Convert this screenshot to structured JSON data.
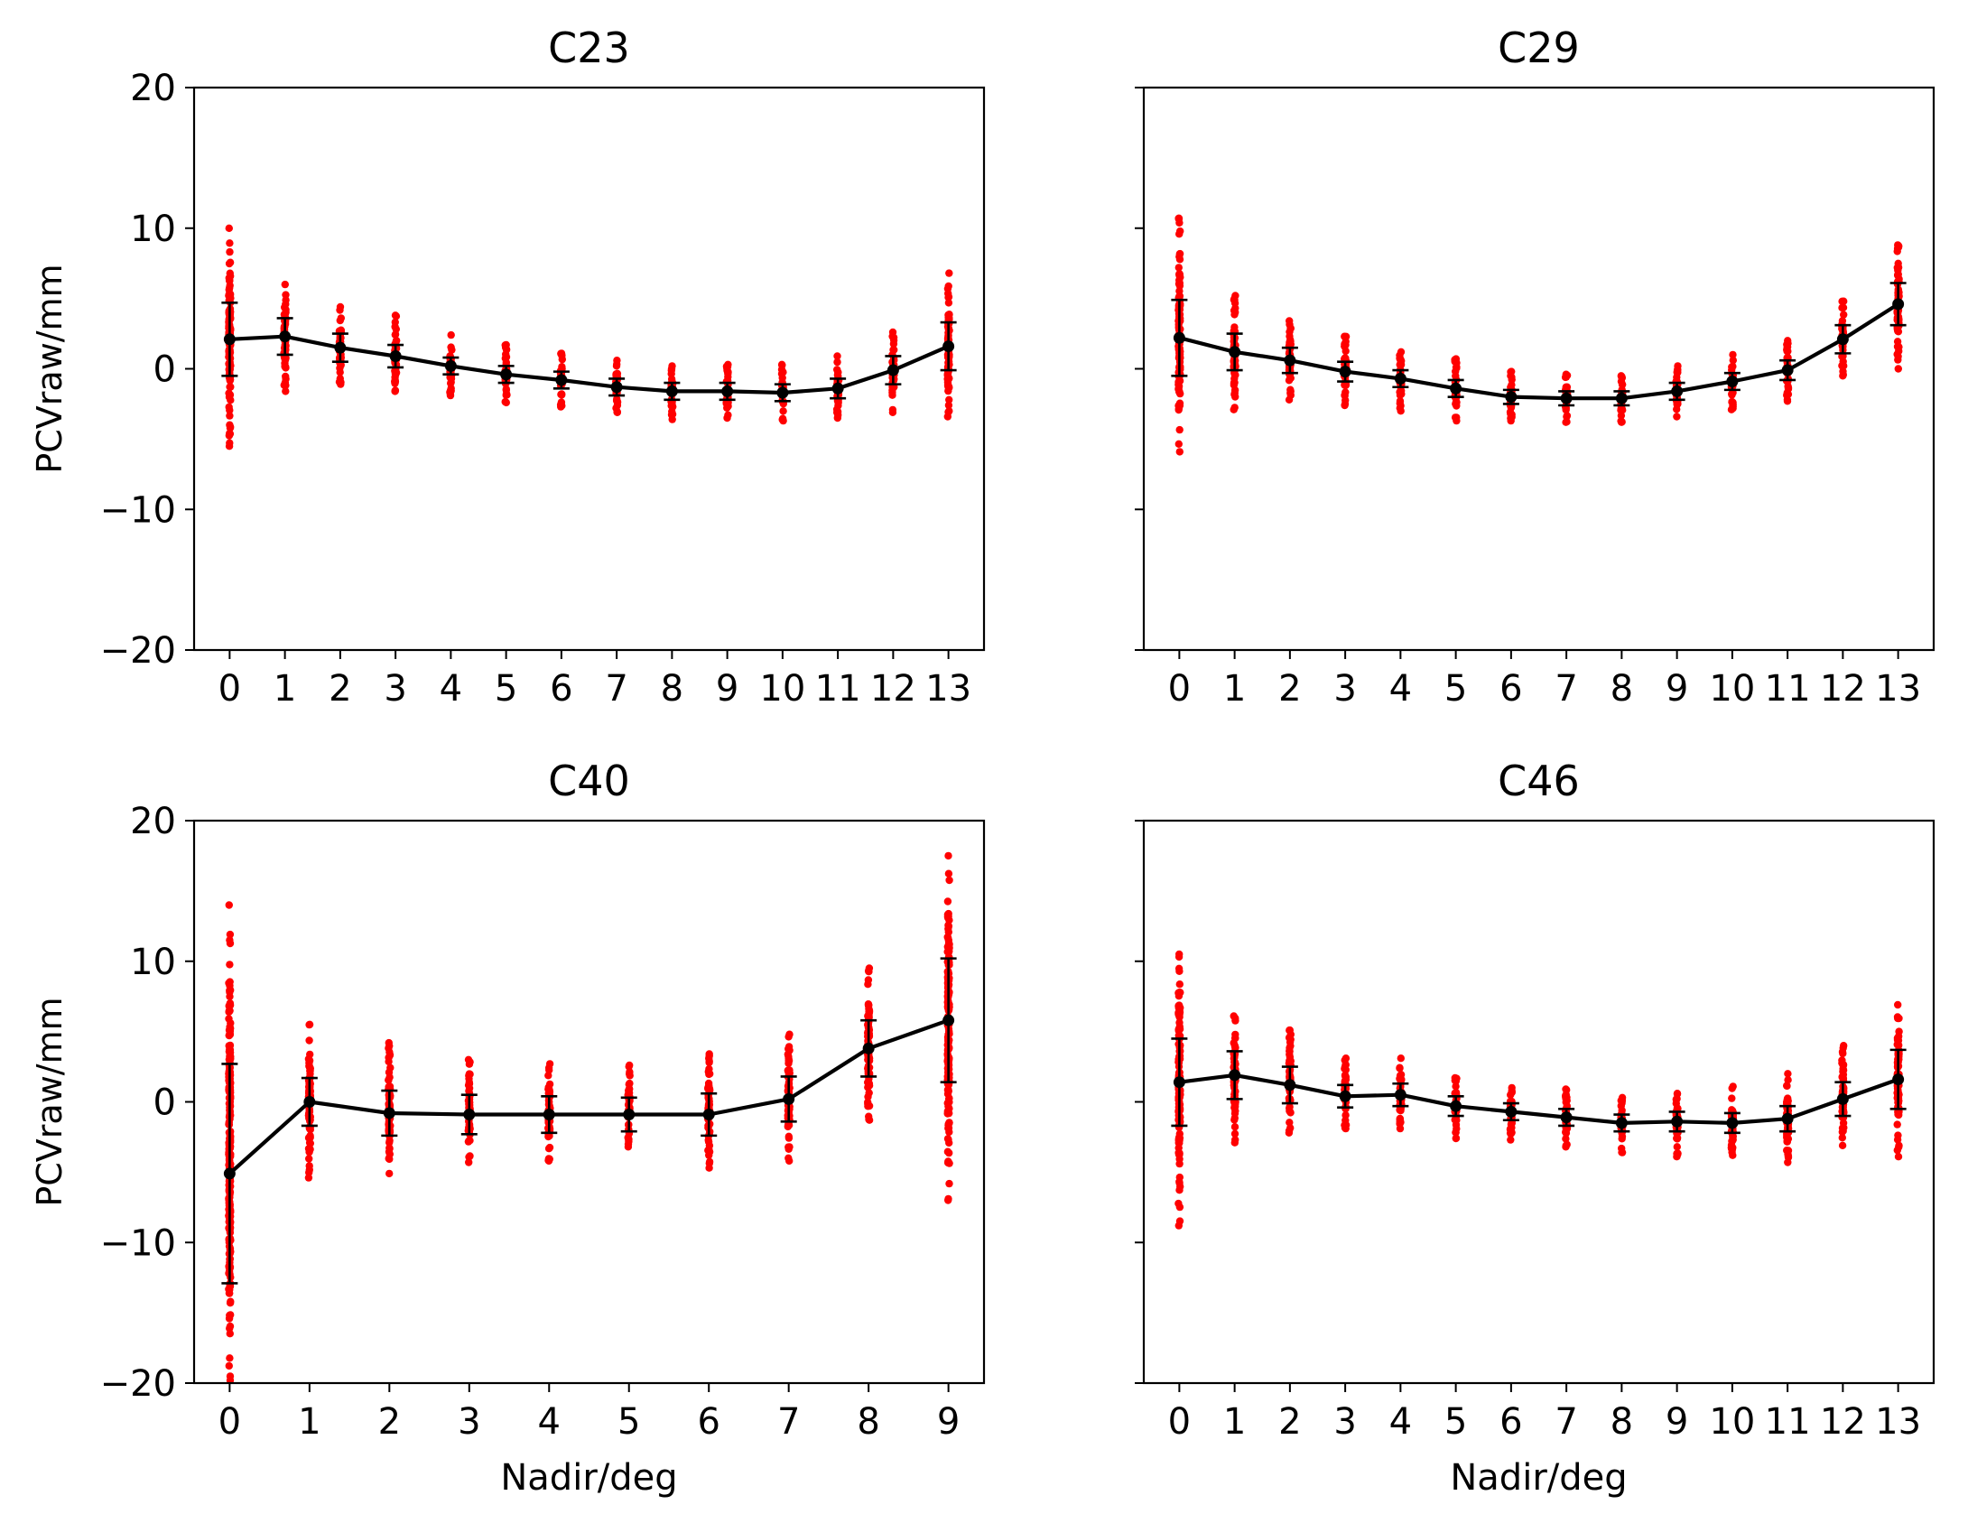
{
  "colors": {
    "mean_line": "#000000",
    "scatter": "#ff0000",
    "axes": "#000000"
  },
  "shared": {
    "ylabel": "PCVraw/mm",
    "xlabel": "Nadir/deg",
    "ylim": [
      -20,
      20
    ],
    "yticks": [
      20,
      10,
      0,
      -10,
      -20
    ],
    "ytick_labels": [
      "20",
      "10",
      "0",
      "−10",
      "−20"
    ]
  },
  "chart_data": [
    {
      "type": "scatter",
      "title": "C23",
      "xlabel": "",
      "ylabel": "PCVraw/mm",
      "ylim": [
        -20,
        20
      ],
      "x": [
        0,
        1,
        2,
        3,
        4,
        5,
        6,
        7,
        8,
        9,
        10,
        11,
        12,
        13
      ],
      "xtick_labels": [
        "0",
        "1",
        "2",
        "3",
        "4",
        "5",
        "6",
        "7",
        "8",
        "9",
        "10",
        "11",
        "12",
        "13"
      ],
      "mean": [
        2.1,
        2.3,
        1.5,
        0.9,
        0.2,
        -0.4,
        -0.8,
        -1.3,
        -1.6,
        -1.6,
        -1.7,
        -1.4,
        -0.1,
        1.6
      ],
      "std": [
        2.6,
        1.3,
        1.0,
        0.8,
        0.6,
        0.6,
        0.6,
        0.6,
        0.6,
        0.6,
        0.6,
        0.7,
        1.0,
        1.7
      ],
      "scatter_range": [
        [
          -5.5,
          10.0
        ],
        [
          -1.6,
          6.0
        ],
        [
          -1.1,
          4.4
        ],
        [
          -1.6,
          3.8
        ],
        [
          -1.9,
          2.4
        ],
        [
          -2.4,
          1.7
        ],
        [
          -2.7,
          1.1
        ],
        [
          -3.1,
          0.6
        ],
        [
          -3.6,
          0.2
        ],
        [
          -3.5,
          0.3
        ],
        [
          -3.7,
          0.3
        ],
        [
          -3.5,
          0.9
        ],
        [
          -3.1,
          2.6
        ],
        [
          -3.4,
          6.8
        ]
      ]
    },
    {
      "type": "scatter",
      "title": "C29",
      "xlabel": "",
      "ylabel": "",
      "ylim": [
        -20,
        20
      ],
      "x": [
        0,
        1,
        2,
        3,
        4,
        5,
        6,
        7,
        8,
        9,
        10,
        11,
        12,
        13
      ],
      "xtick_labels": [
        "0",
        "1",
        "2",
        "3",
        "4",
        "5",
        "6",
        "7",
        "8",
        "9",
        "10",
        "11",
        "12",
        "13"
      ],
      "mean": [
        2.2,
        1.2,
        0.6,
        -0.2,
        -0.7,
        -1.4,
        -2.0,
        -2.1,
        -2.1,
        -1.6,
        -0.9,
        -0.1,
        2.1,
        4.6
      ],
      "std": [
        2.7,
        1.3,
        0.9,
        0.7,
        0.6,
        0.6,
        0.5,
        0.5,
        0.5,
        0.6,
        0.6,
        0.7,
        1.0,
        1.5
      ],
      "scatter_range": [
        [
          -5.9,
          10.7
        ],
        [
          -2.9,
          5.2
        ],
        [
          -2.2,
          3.4
        ],
        [
          -2.6,
          2.3
        ],
        [
          -3.0,
          1.2
        ],
        [
          -3.7,
          0.7
        ],
        [
          -3.7,
          -0.2
        ],
        [
          -3.8,
          -0.4
        ],
        [
          -3.8,
          -0.5
        ],
        [
          -3.4,
          0.2
        ],
        [
          -2.9,
          1.0
        ],
        [
          -2.3,
          2.0
        ],
        [
          -0.5,
          4.8
        ],
        [
          0.0,
          8.8
        ]
      ]
    },
    {
      "type": "scatter",
      "title": "C40",
      "xlabel": "Nadir/deg",
      "ylabel": "PCVraw/mm",
      "ylim": [
        -20,
        20
      ],
      "x": [
        0,
        1,
        2,
        3,
        4,
        5,
        6,
        7,
        8,
        9
      ],
      "xtick_labels": [
        "0",
        "1",
        "2",
        "3",
        "4",
        "5",
        "6",
        "7",
        "8",
        "9"
      ],
      "mean": [
        -5.1,
        0.0,
        -0.8,
        -0.9,
        -0.9,
        -0.9,
        -0.9,
        0.2,
        3.8,
        5.8
      ],
      "std": [
        7.8,
        1.7,
        1.6,
        1.4,
        1.3,
        1.2,
        1.5,
        1.6,
        2.0,
        4.4
      ],
      "scatter_range": [
        [
          -19.8,
          14.0
        ],
        [
          -5.4,
          5.5
        ],
        [
          -5.1,
          4.2
        ],
        [
          -4.3,
          3.0
        ],
        [
          -4.2,
          2.7
        ],
        [
          -3.2,
          2.6
        ],
        [
          -4.7,
          3.4
        ],
        [
          -4.2,
          4.8
        ],
        [
          -1.3,
          9.5
        ],
        [
          -7.0,
          17.5
        ]
      ]
    },
    {
      "type": "scatter",
      "title": "C46",
      "xlabel": "Nadir/deg",
      "ylabel": "",
      "ylim": [
        -20,
        20
      ],
      "x": [
        0,
        1,
        2,
        3,
        4,
        5,
        6,
        7,
        8,
        9,
        10,
        11,
        12,
        13
      ],
      "xtick_labels": [
        "0",
        "1",
        "2",
        "3",
        "4",
        "5",
        "6",
        "7",
        "8",
        "9",
        "10",
        "11",
        "12",
        "13"
      ],
      "mean": [
        1.4,
        1.9,
        1.2,
        0.4,
        0.5,
        -0.3,
        -0.7,
        -1.1,
        -1.5,
        -1.4,
        -1.5,
        -1.2,
        0.2,
        1.6
      ],
      "std": [
        3.1,
        1.7,
        1.3,
        0.8,
        0.8,
        0.7,
        0.6,
        0.6,
        0.6,
        0.7,
        0.7,
        0.9,
        1.2,
        2.1
      ],
      "scatter_range": [
        [
          -8.8,
          10.5
        ],
        [
          -2.9,
          6.1
        ],
        [
          -2.2,
          5.1
        ],
        [
          -1.9,
          3.1
        ],
        [
          -1.9,
          3.1
        ],
        [
          -2.6,
          1.7
        ],
        [
          -2.7,
          1.0
        ],
        [
          -3.2,
          0.9
        ],
        [
          -3.6,
          0.3
        ],
        [
          -3.9,
          0.6
        ],
        [
          -3.8,
          1.1
        ],
        [
          -4.3,
          2.0
        ],
        [
          -3.1,
          4.0
        ],
        [
          -3.9,
          6.9
        ]
      ]
    }
  ]
}
